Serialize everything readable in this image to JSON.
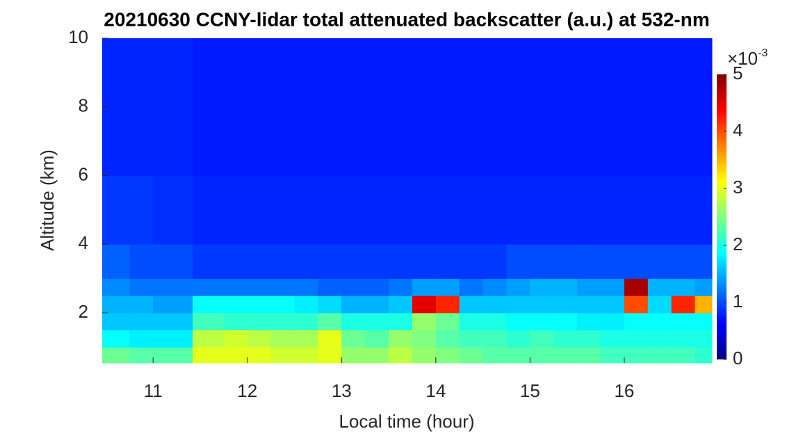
{
  "chart_data": {
    "type": "heatmap",
    "title": "20210630 CCNY-lidar total attenuated backscatter (a.u.) at 532-nm",
    "x_label": "Local time (hour)",
    "y_label": "Altitude (km)",
    "xlim": [
      10.46,
      16.93
    ],
    "ylim": [
      0.54,
      10
    ],
    "xticks": [
      11,
      12,
      13,
      14,
      15,
      16
    ],
    "yticks": [
      2,
      4,
      6,
      8,
      10
    ],
    "x_edges": [
      10.46,
      10.75,
      11,
      11.25,
      11.42,
      11.75,
      12,
      12.25,
      12.5,
      12.75,
      13,
      13.25,
      13.5,
      13.75,
      14,
      14.25,
      14.5,
      14.75,
      15,
      15.25,
      15.5,
      15.75,
      16,
      16.25,
      16.5,
      16.75,
      16.93
    ],
    "y_edges": [
      0.54,
      1.0,
      1.5,
      2.0,
      2.5,
      3.0,
      4.0,
      6.0,
      10.0
    ],
    "z": [
      [
        2.4,
        2.3,
        2.3,
        2.3,
        3.0,
        3.0,
        3.0,
        2.9,
        2.9,
        3.0,
        2.6,
        2.6,
        2.8,
        2.6,
        2.5,
        2.4,
        2.3,
        2.3,
        2.3,
        2.3,
        2.3,
        2.2,
        2.2,
        2.2,
        2.2,
        2.1
      ],
      [
        1.9,
        1.8,
        1.8,
        1.8,
        2.8,
        2.9,
        2.8,
        2.7,
        2.7,
        3.0,
        2.4,
        2.3,
        2.6,
        2.5,
        2.3,
        2.2,
        2.2,
        2.1,
        2.2,
        2.1,
        2.1,
        2.0,
        2.0,
        2.0,
        2.0,
        2.0
      ],
      [
        1.6,
        1.6,
        1.6,
        1.6,
        2.2,
        2.1,
        2.1,
        2.1,
        2.1,
        2.3,
        2.0,
        2.0,
        2.0,
        2.6,
        2.4,
        2.0,
        2.0,
        1.9,
        1.9,
        1.9,
        1.8,
        1.8,
        1.9,
        1.9,
        1.9,
        1.9
      ],
      [
        1.5,
        1.5,
        1.4,
        1.4,
        1.9,
        1.9,
        1.9,
        1.9,
        1.8,
        1.7,
        1.5,
        1.5,
        1.6,
        4.5,
        4.2,
        1.6,
        1.6,
        1.6,
        1.6,
        1.6,
        1.6,
        1.6,
        4.0,
        1.7,
        4.2,
        3.5
      ],
      [
        1.3,
        1.2,
        1.2,
        1.2,
        1.2,
        1.2,
        1.2,
        1.2,
        1.2,
        1.1,
        1.1,
        1.1,
        1.2,
        1.4,
        1.4,
        1.2,
        1.3,
        1.4,
        1.5,
        1.5,
        1.4,
        1.4,
        4.8,
        1.5,
        1.5,
        1.4
      ],
      [
        1.1,
        1.0,
        1.0,
        1.0,
        0.9,
        0.9,
        0.9,
        0.9,
        0.9,
        0.9,
        0.9,
        0.9,
        0.9,
        0.9,
        0.9,
        0.9,
        0.9,
        1.0,
        1.0,
        1.0,
        1.0,
        1.0,
        1.0,
        1.0,
        1.0,
        1.0
      ],
      [
        0.9,
        0.9,
        0.85,
        0.85,
        0.8,
        0.8,
        0.8,
        0.8,
        0.8,
        0.8,
        0.8,
        0.8,
        0.8,
        0.8,
        0.8,
        0.8,
        0.8,
        0.8,
        0.8,
        0.8,
        0.8,
        0.8,
        0.8,
        0.8,
        0.8,
        0.8
      ],
      [
        0.8,
        0.8,
        0.8,
        0.8,
        0.75,
        0.75,
        0.75,
        0.75,
        0.75,
        0.75,
        0.75,
        0.75,
        0.75,
        0.75,
        0.75,
        0.75,
        0.75,
        0.75,
        0.75,
        0.75,
        0.75,
        0.75,
        0.75,
        0.75,
        0.75,
        0.75
      ]
    ],
    "colormap": "jet",
    "clim": [
      0,
      5
    ],
    "cticks": [
      0,
      1,
      2,
      3,
      4,
      5
    ],
    "colorbar_multiplier": "×10",
    "colorbar_exponent": "-3"
  }
}
